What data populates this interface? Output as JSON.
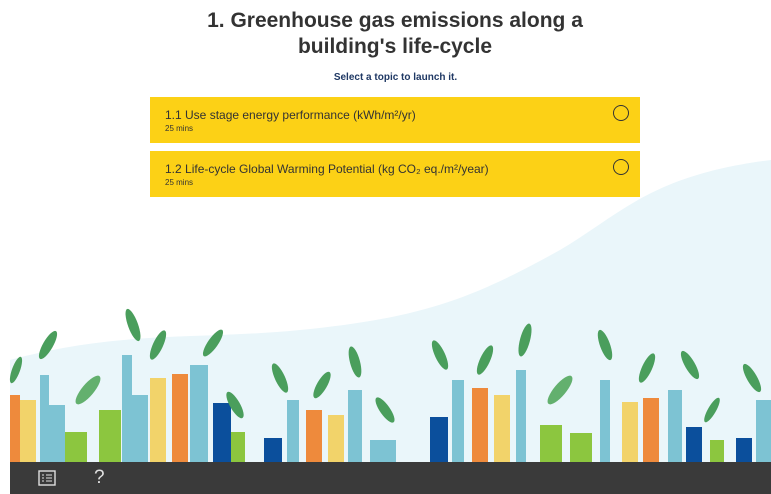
{
  "header": {
    "title": "1. Greenhouse gas emissions along a building's life-cycle",
    "subtitle": "Select a topic to launch it."
  },
  "topics": [
    {
      "title": "1.1 Use stage energy performance (kWh/m²/yr)",
      "duration": "25 mins"
    },
    {
      "title": "1.2 Life-cycle Global Warming Potential (kg CO₂ eq./m²/year)",
      "duration": "25 mins"
    }
  ],
  "footer": {
    "help": "?"
  }
}
